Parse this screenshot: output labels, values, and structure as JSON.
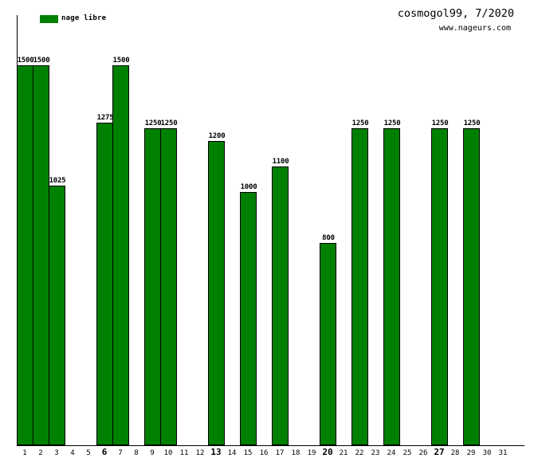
{
  "header": {
    "title": "cosmogol99, 7/2020",
    "subtitle": "www.nageurs.com"
  },
  "legend": {
    "label": "nage libre",
    "swatch_color": "#008000",
    "position": "top-left"
  },
  "colors": {
    "background": "#ffffff",
    "bar_fill": "#008000",
    "bar_border": "#000000",
    "axis": "#000000",
    "text": "#000000"
  },
  "chart_data": {
    "type": "bar",
    "title": "cosmogol99, 7/2020",
    "subtitle": "www.nageurs.com",
    "legend_entries": [
      "nage libre"
    ],
    "legend_position": "top-left",
    "xlabel": "",
    "ylabel": "",
    "categories": [
      "1",
      "2",
      "3",
      "4",
      "5",
      "6",
      "7",
      "8",
      "9",
      "10",
      "11",
      "12",
      "13",
      "14",
      "15",
      "16",
      "17",
      "18",
      "19",
      "20",
      "21",
      "22",
      "23",
      "24",
      "25",
      "26",
      "27",
      "28",
      "29",
      "30",
      "31"
    ],
    "values": [
      1500,
      1500,
      1025,
      null,
      null,
      1275,
      1500,
      null,
      1250,
      1250,
      null,
      null,
      1200,
      null,
      1000,
      null,
      1100,
      null,
      null,
      800,
      null,
      1250,
      null,
      1250,
      null,
      null,
      1250,
      null,
      1250,
      null,
      null
    ],
    "bold_tick_labels": [
      "6",
      "13",
      "20",
      "27"
    ],
    "data_labels_shown": true,
    "grid": false,
    "y_axis_tick_labels": [],
    "ylim": [
      0,
      1700
    ]
  }
}
